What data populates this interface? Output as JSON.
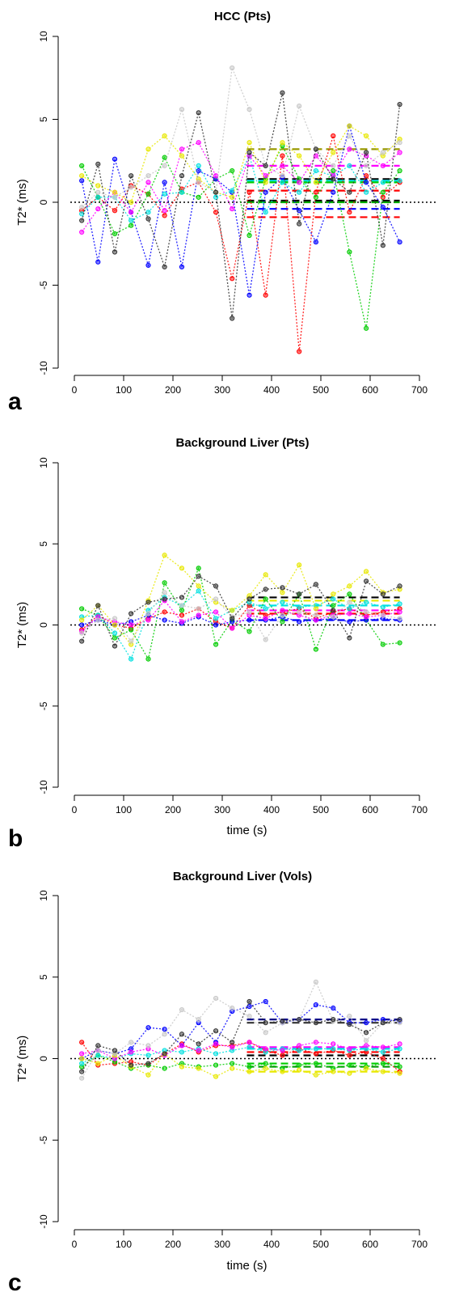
{
  "chart_data": [
    {
      "panel_label": "a",
      "type": "line",
      "title": "HCC (Pts)",
      "xlabel": "",
      "ylabel": "T2* (ms)",
      "xlim": [
        0,
        700
      ],
      "ylim": [
        -10,
        10
      ],
      "x_ticks": [
        0,
        100,
        200,
        300,
        400,
        500,
        600,
        700
      ],
      "y_ticks": [
        -10,
        -5,
        0,
        5,
        10
      ],
      "reference_line": 0,
      "x": [
        15,
        48,
        82,
        115,
        150,
        183,
        218,
        252,
        287,
        320,
        355,
        388,
        422,
        456,
        490,
        525,
        558,
        592,
        626,
        660
      ],
      "series": [
        {
          "color": "#ff0000",
          "values": [
            -0.5,
            0.3,
            -0.5,
            1.0,
            0.5,
            -0.8,
            0.8,
            1.2,
            -0.6,
            -4.6,
            0.6,
            -5.6,
            2.8,
            -9.0,
            0.6,
            4.0,
            -0.6,
            1.6,
            0.3,
            1.2
          ]
        },
        {
          "color": "#00cc00",
          "values": [
            2.2,
            0.3,
            -1.9,
            -1.4,
            0.5,
            2.7,
            0.6,
            0.3,
            1.4,
            1.9,
            -2.0,
            1.4,
            3.4,
            1.4,
            0.3,
            1.9,
            -3.0,
            -7.6,
            0.6,
            1.9
          ]
        },
        {
          "color": "#0000ff",
          "values": [
            1.3,
            -3.6,
            2.6,
            -0.6,
            -3.8,
            1.2,
            -3.9,
            1.9,
            1.4,
            0.6,
            -5.6,
            0.6,
            1.5,
            -0.5,
            -2.4,
            0.6,
            4.6,
            1.2,
            -0.3,
            -2.4
          ]
        },
        {
          "color": "#00e0e0",
          "values": [
            -0.7,
            0.3,
            0.3,
            -1.1,
            -0.6,
            0.5,
            0.6,
            2.2,
            0.3,
            0.7,
            2.8,
            -0.6,
            1.2,
            0.6,
            1.9,
            1.6,
            2.2,
            0.6,
            1.2,
            1.3
          ]
        },
        {
          "color": "#ff00ff",
          "values": [
            -1.8,
            -0.4,
            0.6,
            -0.6,
            1.2,
            -0.5,
            3.2,
            3.6,
            1.6,
            -0.4,
            2.8,
            1.6,
            2.2,
            1.2,
            2.8,
            1.6,
            3.2,
            2.8,
            2.2,
            3.0
          ]
        },
        {
          "color": "#e8e800",
          "values": [
            1.6,
            1.0,
            0.6,
            0.0,
            3.2,
            4.0,
            2.8,
            1.4,
            0.6,
            0.3,
            3.6,
            1.2,
            3.6,
            2.8,
            1.2,
            3.0,
            4.6,
            4.0,
            2.8,
            3.8
          ]
        },
        {
          "color": "#c8c8c8",
          "values": [
            -0.3,
            0.6,
            0.3,
            0.9,
            1.6,
            2.2,
            5.6,
            1.2,
            0.6,
            8.1,
            5.6,
            2.2,
            1.6,
            5.8,
            3.2,
            2.2,
            4.0,
            2.2,
            3.0,
            3.6
          ]
        },
        {
          "color": "#333333",
          "values": [
            -1.1,
            2.3,
            -3.0,
            1.6,
            -1.0,
            -3.9,
            1.6,
            5.4,
            0.6,
            -7.0,
            3.0,
            2.2,
            6.6,
            -1.3,
            3.2,
            1.4,
            0.6,
            3.0,
            -2.6,
            5.9
          ]
        }
      ],
      "mean_lines": [
        {
          "color": "#999900",
          "value": 3.2
        },
        {
          "color": "#ff00ff",
          "value": 2.2
        },
        {
          "color": "#000000",
          "value": 1.4
        },
        {
          "color": "#00e0e0",
          "value": 1.3
        },
        {
          "color": "#00cc00",
          "value": 1.2
        },
        {
          "color": "#ff0000",
          "value": 0.7
        },
        {
          "color": "#000000",
          "value": 0.1
        },
        {
          "color": "#00aa00",
          "value": 0.0
        },
        {
          "color": "#0000ff",
          "value": -0.4
        },
        {
          "color": "#ff0000",
          "value": -0.9
        }
      ],
      "mean_line_x": [
        350,
        660
      ]
    },
    {
      "panel_label": "b",
      "type": "line",
      "title": "Background Liver (Pts)",
      "xlabel": "time (s)",
      "ylabel": "T2* (ms)",
      "xlim": [
        0,
        700
      ],
      "ylim": [
        -10,
        10
      ],
      "x_ticks": [
        0,
        100,
        200,
        300,
        400,
        500,
        600,
        700
      ],
      "y_ticks": [
        -10,
        -5,
        0,
        5,
        10
      ],
      "reference_line": 0,
      "x": [
        15,
        48,
        82,
        115,
        150,
        183,
        218,
        252,
        287,
        320,
        355,
        388,
        422,
        456,
        490,
        525,
        558,
        592,
        626,
        660
      ],
      "series": [
        {
          "color": "#ff0000",
          "values": [
            -0.3,
            0.6,
            0.0,
            -0.2,
            0.4,
            0.8,
            0.6,
            1.0,
            0.2,
            -0.2,
            1.2,
            0.6,
            0.8,
            1.0,
            0.4,
            0.8,
            1.0,
            0.6,
            0.8,
            1.0
          ]
        },
        {
          "color": "#00cc00",
          "values": [
            1.0,
            0.6,
            -0.8,
            -0.3,
            -2.1,
            2.6,
            0.9,
            3.5,
            -1.2,
            0.3,
            -0.4,
            1.6,
            0.2,
            1.9,
            -1.5,
            1.2,
            1.9,
            0.3,
            -1.2,
            -1.1
          ]
        },
        {
          "color": "#0000ff",
          "values": [
            0.0,
            0.3,
            0.0,
            0.2,
            0.6,
            0.3,
            0.1,
            0.5,
            0.0,
            0.2,
            0.3,
            0.3,
            0.5,
            0.2,
            0.3,
            0.4,
            0.2,
            0.3,
            0.4,
            0.3
          ]
        },
        {
          "color": "#00e0e0",
          "values": [
            0.5,
            0.6,
            -0.5,
            -2.1,
            0.9,
            1.7,
            1.2,
            2.1,
            0.4,
            0.9,
            1.4,
            1.0,
            1.4,
            1.1,
            1.2,
            1.6,
            1.0,
            1.4,
            1.1,
            1.3
          ]
        },
        {
          "color": "#ff00ff",
          "values": [
            -0.4,
            0.5,
            0.2,
            0.0,
            0.3,
            1.5,
            0.2,
            0.6,
            0.8,
            -0.2,
            0.6,
            0.4,
            0.9,
            0.6,
            0.3,
            0.6,
            0.7,
            0.5,
            0.6,
            0.8
          ]
        },
        {
          "color": "#e8e800",
          "values": [
            0.3,
            1.2,
            0.0,
            -1.2,
            1.5,
            4.3,
            3.5,
            2.4,
            1.4,
            0.9,
            1.8,
            3.1,
            2.0,
            3.7,
            1.0,
            1.9,
            2.4,
            3.3,
            2.0,
            2.2
          ]
        },
        {
          "color": "#c8c8c8",
          "values": [
            -0.5,
            0.3,
            0.4,
            -1.0,
            0.7,
            2.0,
            1.2,
            1.0,
            1.6,
            0.5,
            0.8,
            -0.9,
            0.6,
            0.8,
            0.6,
            0.5,
            1.4,
            0.8,
            0.6,
            0.4
          ]
        },
        {
          "color": "#333333",
          "values": [
            -1.0,
            1.2,
            -1.3,
            0.7,
            1.4,
            1.6,
            1.7,
            3.0,
            2.4,
            0.4,
            1.6,
            2.2,
            2.3,
            1.9,
            2.5,
            0.9,
            -0.8,
            2.7,
            1.9,
            2.4
          ]
        }
      ],
      "mean_lines": [
        {
          "color": "#000000",
          "value": 1.7
        },
        {
          "color": "#e8e800",
          "value": 1.5
        },
        {
          "color": "#00e0e0",
          "value": 1.2
        },
        {
          "color": "#ff00ff",
          "value": 0.9
        },
        {
          "color": "#ff0000",
          "value": 0.7
        },
        {
          "color": "#0000ff",
          "value": 0.3
        }
      ],
      "mean_line_x": [
        350,
        660
      ]
    },
    {
      "panel_label": "c",
      "type": "line",
      "title": "Background Liver (Vols)",
      "xlabel": "time (s)",
      "ylabel": "T2* (ms)",
      "xlim": [
        0,
        700
      ],
      "ylim": [
        -10,
        10
      ],
      "x_ticks": [
        0,
        100,
        200,
        300,
        400,
        500,
        600,
        700
      ],
      "y_ticks": [
        -10,
        -5,
        0,
        5,
        10
      ],
      "reference_line": 0,
      "x": [
        15,
        48,
        82,
        115,
        150,
        183,
        218,
        252,
        287,
        320,
        355,
        388,
        422,
        456,
        490,
        525,
        558,
        592,
        626,
        660
      ],
      "series": [
        {
          "color": "#ff0000",
          "values": [
            1.0,
            -0.4,
            -0.3,
            -0.2,
            -0.4,
            0.3,
            0.9,
            0.4,
            0.8,
            0.8,
            1.0,
            0.5,
            0.2,
            0.6,
            0.3,
            0.5,
            0.2,
            0.4,
            0.0,
            -0.8
          ]
        },
        {
          "color": "#00cc00",
          "values": [
            -0.5,
            0.2,
            -0.2,
            -0.6,
            -0.4,
            -0.6,
            -0.3,
            -0.5,
            -0.4,
            -0.3,
            -0.5,
            -0.3,
            -0.6,
            -0.4,
            -0.3,
            -0.6,
            -0.4,
            -0.5,
            -0.3,
            -0.5
          ]
        },
        {
          "color": "#0000ff",
          "values": [
            0.0,
            0.5,
            0.3,
            0.6,
            1.9,
            1.8,
            0.8,
            2.2,
            1.0,
            2.9,
            3.2,
            3.5,
            2.2,
            2.4,
            3.3,
            3.1,
            2.2,
            2.2,
            2.4,
            2.3
          ]
        },
        {
          "color": "#00e0e0",
          "values": [
            -0.3,
            0.2,
            0.0,
            0.3,
            0.2,
            0.5,
            0.4,
            0.6,
            0.3,
            0.5,
            0.7,
            0.4,
            0.6,
            0.5,
            0.6,
            0.6,
            0.5,
            0.6,
            0.4,
            0.6
          ]
        },
        {
          "color": "#ff00ff",
          "values": [
            0.3,
            0.5,
            0.0,
            0.4,
            0.6,
            0.2,
            0.8,
            0.5,
            0.9,
            0.7,
            1.0,
            0.6,
            0.5,
            0.8,
            1.0,
            0.9,
            0.6,
            0.8,
            0.7,
            0.9
          ]
        },
        {
          "color": "#e8e800",
          "values": [
            0.0,
            -0.3,
            0.2,
            -0.5,
            -1.0,
            0.3,
            -0.5,
            -0.6,
            -1.1,
            -0.6,
            -0.8,
            -0.6,
            -0.8,
            -0.7,
            -1.0,
            -0.8,
            -0.9,
            -0.6,
            -0.8,
            -0.9
          ]
        },
        {
          "color": "#c8c8c8",
          "values": [
            -1.2,
            0.5,
            0.3,
            1.0,
            0.8,
            1.5,
            3.0,
            2.4,
            3.7,
            3.1,
            2.6,
            1.6,
            2.2,
            2.4,
            4.7,
            2.3,
            2.6,
            1.1,
            2.2,
            2.2
          ]
        },
        {
          "color": "#333333",
          "values": [
            -0.8,
            0.8,
            0.5,
            -0.4,
            -0.3,
            0.3,
            1.5,
            0.9,
            1.7,
            1.0,
            3.5,
            2.2,
            2.3,
            2.4,
            2.2,
            2.4,
            2.1,
            1.6,
            2.2,
            2.4
          ]
        }
      ],
      "mean_lines": [
        {
          "color": "#000088",
          "value": 2.4
        },
        {
          "color": "#333333",
          "value": 2.2
        },
        {
          "color": "#ff00ff",
          "value": 0.7
        },
        {
          "color": "#00e0e0",
          "value": 0.6
        },
        {
          "color": "#ff0000",
          "value": 0.4
        },
        {
          "color": "#000000",
          "value": 0.2
        },
        {
          "color": "#00cc00",
          "value": -0.3
        },
        {
          "color": "#009900",
          "value": -0.5
        },
        {
          "color": "#e8e800",
          "value": -0.8
        }
      ],
      "mean_line_x": [
        350,
        660
      ]
    }
  ]
}
